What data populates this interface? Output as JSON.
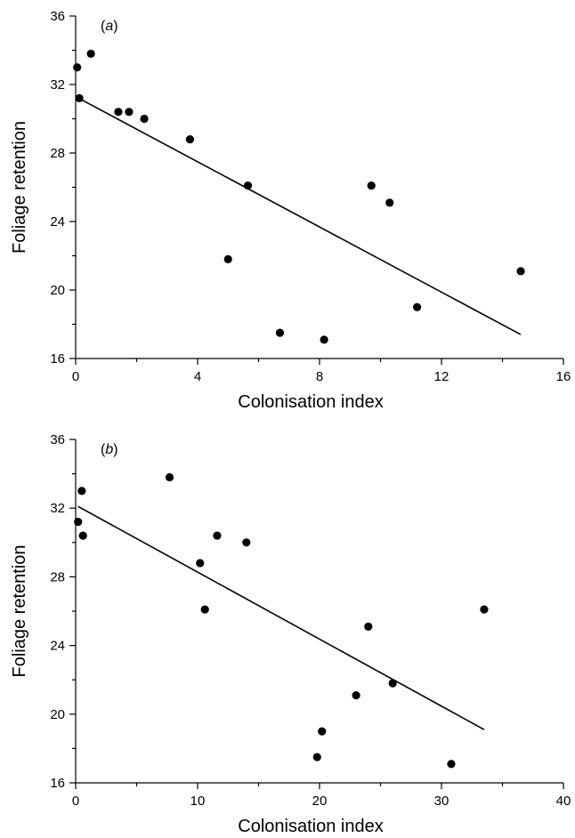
{
  "chart_data": [
    {
      "type": "scatter",
      "panel_label": {
        "open": "(",
        "letter": "a",
        "close": ")"
      },
      "xlabel": "Colonisation index",
      "ylabel": "Foliage retention",
      "xlim": [
        0,
        16
      ],
      "ylim": [
        16,
        36
      ],
      "xticks": [
        0,
        4,
        8,
        12,
        16
      ],
      "yticks": [
        16,
        20,
        24,
        28,
        32,
        36
      ],
      "minor_x": 2,
      "minor_y": 2,
      "points": [
        [
          0.05,
          33.0
        ],
        [
          0.5,
          33.8
        ],
        [
          0.12,
          31.2
        ],
        [
          1.4,
          30.4
        ],
        [
          1.75,
          30.4
        ],
        [
          2.25,
          30.0
        ],
        [
          3.75,
          28.8
        ],
        [
          5.65,
          26.1
        ],
        [
          5.0,
          21.8
        ],
        [
          6.7,
          17.5
        ],
        [
          8.15,
          17.1
        ],
        [
          9.7,
          26.1
        ],
        [
          10.3,
          25.1
        ],
        [
          11.2,
          19.0
        ],
        [
          14.6,
          21.1
        ]
      ],
      "fit": [
        [
          0.1,
          31.2
        ],
        [
          14.6,
          17.4
        ]
      ]
    },
    {
      "type": "scatter",
      "panel_label": {
        "open": "(",
        "letter": "b",
        "close": ")"
      },
      "xlabel": "Colonisation index",
      "ylabel": "Foliage retention",
      "xlim": [
        0,
        40
      ],
      "ylim": [
        16,
        36
      ],
      "xticks": [
        0,
        10,
        20,
        30,
        40
      ],
      "yticks": [
        16,
        20,
        24,
        28,
        32,
        36
      ],
      "minor_x": 5,
      "minor_y": 2,
      "points": [
        [
          0.2,
          31.2
        ],
        [
          0.5,
          33.0
        ],
        [
          0.6,
          30.4
        ],
        [
          7.7,
          33.8
        ],
        [
          10.2,
          28.8
        ],
        [
          10.6,
          26.1
        ],
        [
          11.6,
          30.4
        ],
        [
          14.0,
          30.0
        ],
        [
          19.8,
          17.5
        ],
        [
          20.2,
          19.0
        ],
        [
          23.0,
          21.1
        ],
        [
          24.0,
          25.1
        ],
        [
          26.0,
          21.8
        ],
        [
          30.8,
          17.1
        ],
        [
          33.5,
          26.1
        ]
      ],
      "fit": [
        [
          0.2,
          32.1
        ],
        [
          33.5,
          19.1
        ]
      ]
    }
  ]
}
